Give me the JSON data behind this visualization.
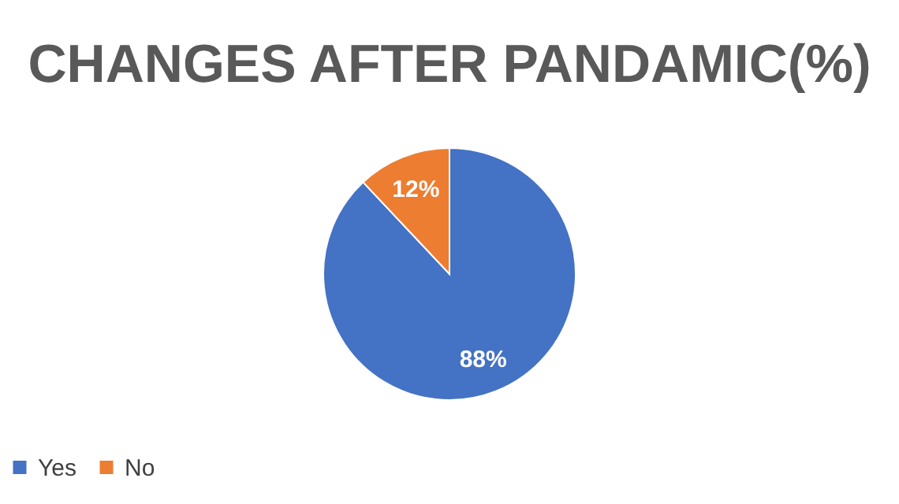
{
  "chart_data": {
    "type": "pie",
    "title": "CHANGES AFTER PANDAMIC(%)",
    "categories": [
      "Yes",
      "No"
    ],
    "values": [
      88,
      12
    ],
    "colors": [
      "#4472c4",
      "#ed7d31"
    ],
    "value_labels": [
      "88%",
      "12%"
    ],
    "legend": "bottom"
  }
}
